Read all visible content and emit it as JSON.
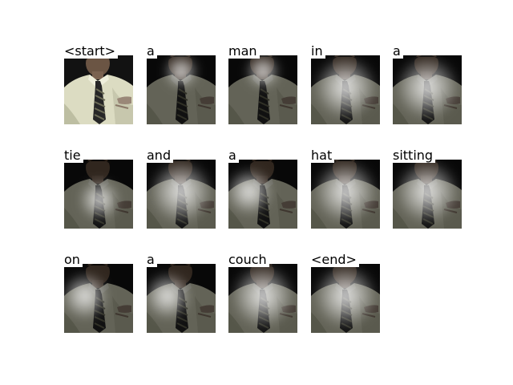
{
  "caption_tokens": [
    {
      "word": "<start>",
      "highlight": "none"
    },
    {
      "word": "a",
      "highlight": "face"
    },
    {
      "word": "man",
      "highlight": "face"
    },
    {
      "word": "in",
      "highlight": "shirt"
    },
    {
      "word": "a",
      "highlight": "shirt"
    },
    {
      "word": "tie",
      "highlight": "tie"
    },
    {
      "word": "and",
      "highlight": "shirt"
    },
    {
      "word": "a",
      "highlight": "left-shirt"
    },
    {
      "word": "hat",
      "highlight": "shirt"
    },
    {
      "word": "sitting",
      "highlight": "shirt"
    },
    {
      "word": "on",
      "highlight": "left-shirt"
    },
    {
      "word": "a",
      "highlight": "left-shirt"
    },
    {
      "word": "couch",
      "highlight": "shirt"
    },
    {
      "word": "<end>",
      "highlight": "shirt"
    }
  ]
}
